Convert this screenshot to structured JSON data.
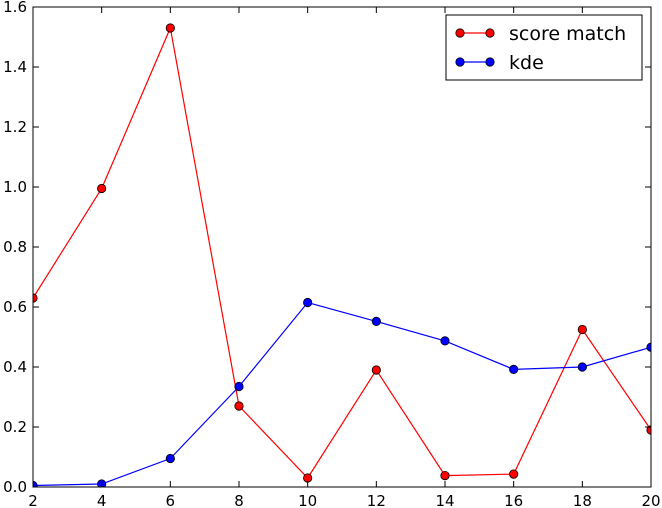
{
  "chart_data": {
    "type": "line",
    "title": "",
    "xlabel": "",
    "ylabel": "",
    "x": [
      2,
      4,
      6,
      8,
      10,
      12,
      14,
      16,
      18,
      20
    ],
    "xlim": [
      2,
      20
    ],
    "ylim": [
      0,
      1.6
    ],
    "xticks": [
      "2",
      "4",
      "6",
      "8",
      "10",
      "12",
      "14",
      "16",
      "18",
      "20"
    ],
    "yticks": [
      "0.0",
      "0.2",
      "0.4",
      "0.6",
      "0.8",
      "1.0",
      "1.2",
      "1.4",
      "1.6"
    ],
    "grid": false,
    "legend_position": "top-right",
    "series": [
      {
        "name": "score match",
        "color": "#ff0000",
        "marker": "circle",
        "values": [
          0.63,
          0.995,
          1.53,
          0.27,
          0.03,
          0.39,
          0.038,
          0.043,
          0.525,
          0.19
        ]
      },
      {
        "name": "kde",
        "color": "#0000ff",
        "marker": "circle",
        "values": [
          0.005,
          0.01,
          0.095,
          0.335,
          0.615,
          0.552,
          0.487,
          0.392,
          0.4,
          0.466
        ]
      }
    ]
  }
}
